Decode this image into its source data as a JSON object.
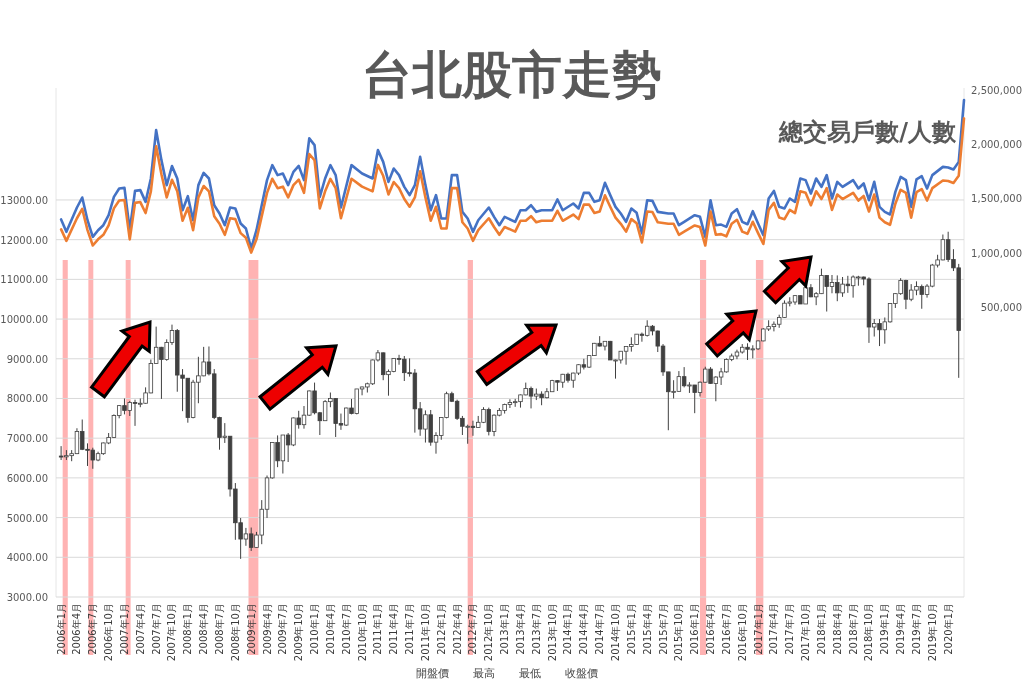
{
  "chart_data": {
    "type": "candlestick",
    "title": "台北股市走勢",
    "annotations": [
      "總交易戶數/人數",
      "開盤價",
      "最高",
      "最低",
      "收盤價"
    ],
    "color": "#404040",
    "grid": "y",
    "xlim": [
      "2005-12-02",
      "2020-04-01"
    ],
    "ylim": [
      3000,
      15820
    ],
    "yticks": [
      {
        "value": 3000,
        "label": "3000.00"
      },
      {
        "value": 4000,
        "label": "4000.00"
      },
      {
        "value": 5000,
        "label": "5000.00"
      },
      {
        "value": 6000,
        "label": "6000.00"
      },
      {
        "value": 7000,
        "label": "7000.00"
      },
      {
        "value": 8000,
        "label": "8000.00"
      },
      {
        "value": 9000,
        "label": "9000.00"
      },
      {
        "value": 10000,
        "label": "10000.00"
      },
      {
        "value": 11000,
        "label": "11000.00"
      },
      {
        "value": 12000,
        "label": "12000.00"
      },
      {
        "value": 13000,
        "label": "13000.00"
      }
    ],
    "y2lim": [
      -2170000,
      2515000
    ],
    "y2ticks": [
      {
        "value": 500000,
        "label": "500,000"
      },
      {
        "value": 1000000,
        "label": "1,000,000"
      },
      {
        "value": 1500000,
        "label": "1,500,000"
      },
      {
        "value": 2000000,
        "label": "2,000,000"
      },
      {
        "value": 2500000,
        "label": "2,500,000"
      }
    ],
    "xticks": [
      {
        "value": "2006-01",
        "label": "2006年1月"
      },
      {
        "value": "2006-04",
        "label": "2006年4月"
      },
      {
        "value": "2006-07",
        "label": "2006年7月"
      },
      {
        "value": "2006-10",
        "label": "2006年10月"
      },
      {
        "value": "2007-01",
        "label": "2007年1月"
      },
      {
        "value": "2007-04",
        "label": "2007年4月"
      },
      {
        "value": "2007-07",
        "label": "2007年7月"
      },
      {
        "value": "2007-10",
        "label": "2007年10月"
      },
      {
        "value": "2008-01",
        "label": "2008年1月"
      },
      {
        "value": "2008-04",
        "label": "2008年4月"
      },
      {
        "value": "2008-07",
        "label": "2008年7月"
      },
      {
        "value": "2008-10",
        "label": "2008年10月"
      },
      {
        "value": "2009-01",
        "label": "2009年1月"
      },
      {
        "value": "2009-04",
        "label": "2009年4月"
      },
      {
        "value": "2009-07",
        "label": "2009年7月"
      },
      {
        "value": "2009-10",
        "label": "2009年10月"
      },
      {
        "value": "2010-01",
        "label": "2010年1月"
      },
      {
        "value": "2010-04",
        "label": "2010年4月"
      },
      {
        "value": "2010-07",
        "label": "2010年7月"
      },
      {
        "value": "2010-10",
        "label": "2010年10月"
      },
      {
        "value": "2011-01",
        "label": "2011年1月"
      },
      {
        "value": "2011-04",
        "label": "2011年4月"
      },
      {
        "value": "2011-07",
        "label": "2011年7月"
      },
      {
        "value": "2011-10",
        "label": "2011年10月"
      },
      {
        "value": "2012-01",
        "label": "2012年1月"
      },
      {
        "value": "2012-04",
        "label": "2012年4月"
      },
      {
        "value": "2012-07",
        "label": "2012年7月"
      },
      {
        "value": "2012-10",
        "label": "2012年10月"
      },
      {
        "value": "2013-01",
        "label": "2013年1月"
      },
      {
        "value": "2013-04",
        "label": "2013年4月"
      },
      {
        "value": "2013-07",
        "label": "2013年7月"
      },
      {
        "value": "2013-10",
        "label": "2013年10月"
      },
      {
        "value": "2014-01",
        "label": "2014年1月"
      },
      {
        "value": "2014-04",
        "label": "2014年4月"
      },
      {
        "value": "2014-07",
        "label": "2014年7月"
      },
      {
        "value": "2014-10",
        "label": "2014年10月"
      },
      {
        "value": "2015-01",
        "label": "2015年1月"
      },
      {
        "value": "2015-04",
        "label": "2015年4月"
      },
      {
        "value": "2015-07",
        "label": "2015年7月"
      },
      {
        "value": "2015-10",
        "label": "2015年10月"
      },
      {
        "value": "2016-01",
        "label": "2016年1月"
      },
      {
        "value": "2016-04",
        "label": "2016年4月"
      },
      {
        "value": "2016-07",
        "label": "2016年7月"
      },
      {
        "value": "2016-10",
        "label": "2016年10月"
      },
      {
        "value": "2017-01",
        "label": "2017年1月"
      },
      {
        "value": "2017-04",
        "label": "2017年4月"
      },
      {
        "value": "2017-07",
        "label": "2017年7月"
      },
      {
        "value": "2017-10",
        "label": "2017年10月"
      },
      {
        "value": "2018-01",
        "label": "2018年1月"
      },
      {
        "value": "2018-04",
        "label": "2018年4月"
      },
      {
        "value": "2018-07",
        "label": "2018年7月"
      },
      {
        "value": "2018-10",
        "label": "2018年10月"
      },
      {
        "value": "2019-01",
        "label": "2019年1月"
      },
      {
        "value": "2019-04",
        "label": "2019年4月"
      },
      {
        "value": "2019-07",
        "label": "2019年7月"
      },
      {
        "value": "2019-10",
        "label": "2019年10月"
      },
      {
        "value": "2020-01",
        "label": "2020年1月"
      }
    ],
    "bands": [
      {
        "axis": "x",
        "from": "2006-01-10",
        "to": "2006-02-09",
        "color": "#ff8080"
      },
      {
        "axis": "x",
        "from": "2006-06-06",
        "to": "2006-07-04",
        "color": "#ff8080"
      },
      {
        "axis": "x",
        "from": "2007-01-08",
        "to": "2007-02-06",
        "color": "#ff8080"
      },
      {
        "axis": "x",
        "from": "2008-12-16",
        "to": "2009-02-12",
        "color": "#ff8080"
      },
      {
        "axis": "x",
        "from": "2012-06-01",
        "to": "2012-07-01",
        "color": "#ff8080"
      },
      {
        "axis": "x",
        "from": "2016-02-01",
        "to": "2016-03-06",
        "color": "#ff8080"
      },
      {
        "axis": "x",
        "from": "2016-12-19",
        "to": "2017-02-01",
        "color": "#ff8080"
      }
    ],
    "x": [
      "2006-01",
      "2006-02",
      "2006-03",
      "2006-04",
      "2006-05",
      "2006-06",
      "2006-07",
      "2006-08",
      "2006-09",
      "2006-10",
      "2006-11",
      "2006-12",
      "2007-01",
      "2007-02",
      "2007-03",
      "2007-04",
      "2007-05",
      "2007-06",
      "2007-07",
      "2007-08",
      "2007-09",
      "2007-10",
      "2007-11",
      "2007-12",
      "2008-01",
      "2008-02",
      "2008-03",
      "2008-04",
      "2008-05",
      "2008-06",
      "2008-07",
      "2008-08",
      "2008-09",
      "2008-10",
      "2008-11",
      "2008-12",
      "2009-01",
      "2009-02",
      "2009-03",
      "2009-04",
      "2009-05",
      "2009-06",
      "2009-07",
      "2009-08",
      "2009-09",
      "2009-10",
      "2009-11",
      "2009-12",
      "2010-01",
      "2010-02",
      "2010-03",
      "2010-04",
      "2010-05",
      "2010-06",
      "2010-07",
      "2010-08",
      "2010-09",
      "2010-10",
      "2010-11",
      "2010-12",
      "2011-01",
      "2011-02",
      "2011-03",
      "2011-04",
      "2011-05",
      "2011-06",
      "2011-07",
      "2011-08",
      "2011-09",
      "2011-10",
      "2011-11",
      "2011-12",
      "2012-01",
      "2012-02",
      "2012-03",
      "2012-04",
      "2012-05",
      "2012-06",
      "2012-07",
      "2012-08",
      "2012-09",
      "2012-10",
      "2012-11",
      "2012-12",
      "2013-01",
      "2013-02",
      "2013-03",
      "2013-04",
      "2013-05",
      "2013-06",
      "2013-07",
      "2013-08",
      "2013-09",
      "2013-10",
      "2013-11",
      "2013-12",
      "2014-01",
      "2014-02",
      "2014-03",
      "2014-04",
      "2014-05",
      "2014-06",
      "2014-07",
      "2014-08",
      "2014-09",
      "2014-10",
      "2014-11",
      "2014-12",
      "2015-01",
      "2015-02",
      "2015-03",
      "2015-04",
      "2015-05",
      "2015-06",
      "2015-07",
      "2015-08",
      "2015-09",
      "2015-10",
      "2015-11",
      "2015-12",
      "2016-01",
      "2016-02",
      "2016-03",
      "2016-04",
      "2016-05",
      "2016-06",
      "2016-07",
      "2016-08",
      "2016-09",
      "2016-10",
      "2016-11",
      "2016-12",
      "2017-01",
      "2017-02",
      "2017-03",
      "2017-04",
      "2017-05",
      "2017-06",
      "2017-07",
      "2017-08",
      "2017-09",
      "2017-10",
      "2017-11",
      "2017-12",
      "2018-01",
      "2018-02",
      "2018-03",
      "2018-04",
      "2018-05",
      "2018-06",
      "2018-07",
      "2018-08",
      "2018-09",
      "2018-10",
      "2018-11",
      "2018-12",
      "2019-01",
      "2019-02",
      "2019-03",
      "2019-04",
      "2019-05",
      "2019-06",
      "2019-07",
      "2019-08",
      "2019-09",
      "2019-10",
      "2019-11",
      "2019-12",
      "2020-01",
      "2020-02",
      "2020-03"
    ],
    "ohlc": [
      [
        6550,
        6800,
        6450,
        6530
      ],
      [
        6530,
        6700,
        6450,
        6560
      ],
      [
        6560,
        6700,
        6420,
        6610
      ],
      [
        6610,
        7250,
        6600,
        7170
      ],
      [
        7170,
        7470,
        6700,
        6720
      ],
      [
        6720,
        6870,
        6300,
        6700
      ],
      [
        6700,
        6760,
        6230,
        6450
      ],
      [
        6450,
        6660,
        6420,
        6610
      ],
      [
        6610,
        6890,
        6580,
        6880
      ],
      [
        6880,
        7130,
        6850,
        7020
      ],
      [
        7020,
        7600,
        7010,
        7570
      ],
      [
        7570,
        7830,
        7500,
        7820
      ],
      [
        7820,
        8000,
        7600,
        7700
      ],
      [
        7700,
        7940,
        7560,
        7900
      ],
      [
        7900,
        7970,
        7310,
        7880
      ],
      [
        7880,
        8000,
        7780,
        7880
      ],
      [
        7880,
        8280,
        7870,
        8140
      ],
      [
        8140,
        8980,
        8130,
        8880
      ],
      [
        8880,
        9810,
        8880,
        9290
      ],
      [
        9290,
        9300,
        7990,
        8980
      ],
      [
        8980,
        9490,
        8950,
        9410
      ],
      [
        9410,
        9860,
        9350,
        9710
      ],
      [
        9710,
        9750,
        8170,
        8590
      ],
      [
        8590,
        8740,
        7680,
        8510
      ],
      [
        8510,
        8510,
        7390,
        7520
      ],
      [
        7520,
        8470,
        7500,
        8410
      ],
      [
        8410,
        9050,
        7880,
        8570
      ],
      [
        8570,
        9300,
        8560,
        8920
      ],
      [
        8920,
        9310,
        8580,
        8620
      ],
      [
        8620,
        8740,
        7480,
        7520
      ],
      [
        7520,
        7540,
        6710,
        7020
      ],
      [
        7020,
        7380,
        6880,
        7050
      ],
      [
        7050,
        7050,
        5530,
        5720
      ],
      [
        5720,
        5870,
        4440,
        4870
      ],
      [
        4870,
        4990,
        3960,
        4460
      ],
      [
        4460,
        4740,
        4290,
        4590
      ],
      [
        4590,
        4750,
        4160,
        4250
      ],
      [
        4250,
        4640,
        4240,
        4560
      ],
      [
        4560,
        5440,
        4330,
        5210
      ],
      [
        5210,
        6060,
        4990,
        6000
      ],
      [
        6000,
        6890,
        5980,
        6890
      ],
      [
        6890,
        7070,
        6270,
        6430
      ],
      [
        6430,
        7080,
        6110,
        7080
      ],
      [
        7080,
        7130,
        6400,
        6830
      ],
      [
        6830,
        7520,
        6800,
        7510
      ],
      [
        7510,
        7690,
        7240,
        7340
      ],
      [
        7340,
        7810,
        7240,
        7580
      ],
      [
        7580,
        8200,
        7560,
        8190
      ],
      [
        8190,
        8400,
        7600,
        7640
      ],
      [
        7640,
        7660,
        7080,
        7440
      ],
      [
        7440,
        7960,
        7440,
        7920
      ],
      [
        7920,
        8150,
        7780,
        8000
      ],
      [
        8000,
        8010,
        7030,
        7370
      ],
      [
        7370,
        7620,
        7210,
        7330
      ],
      [
        7330,
        7770,
        7310,
        7760
      ],
      [
        7760,
        7990,
        7600,
        7620
      ],
      [
        7620,
        8240,
        7600,
        8240
      ],
      [
        8240,
        8300,
        8080,
        8290
      ],
      [
        8290,
        8400,
        8150,
        8370
      ],
      [
        8370,
        8980,
        8340,
        8970
      ],
      [
        8970,
        9220,
        8930,
        9150
      ],
      [
        9150,
        9160,
        8460,
        8600
      ],
      [
        8600,
        8730,
        8070,
        8680
      ],
      [
        8680,
        9010,
        8660,
        9010
      ],
      [
        9010,
        9100,
        8850,
        8990
      ],
      [
        8990,
        9070,
        8440,
        8650
      ],
      [
        8650,
        9010,
        8550,
        8640
      ],
      [
        8640,
        8740,
        7140,
        7740
      ],
      [
        7740,
        7910,
        7060,
        7230
      ],
      [
        7230,
        7700,
        6890,
        7590
      ],
      [
        7590,
        7710,
        6810,
        6900
      ],
      [
        6900,
        7150,
        6610,
        7070
      ],
      [
        7070,
        7520,
        6960,
        7520
      ],
      [
        7520,
        8170,
        7500,
        8120
      ],
      [
        8120,
        8170,
        7910,
        7930
      ],
      [
        7930,
        7970,
        7460,
        7500
      ],
      [
        7500,
        7560,
        7080,
        7300
      ],
      [
        7300,
        7340,
        6860,
        7300
      ],
      [
        7300,
        7440,
        7060,
        7270
      ],
      [
        7270,
        7560,
        7270,
        7400
      ],
      [
        7400,
        7780,
        7380,
        7720
      ],
      [
        7720,
        7770,
        7070,
        7170
      ],
      [
        7170,
        7600,
        7050,
        7580
      ],
      [
        7580,
        7760,
        7550,
        7700
      ],
      [
        7700,
        7870,
        7620,
        7850
      ],
      [
        7850,
        7980,
        7760,
        7900
      ],
      [
        7900,
        7990,
        7790,
        7920
      ],
      [
        7920,
        8100,
        7770,
        8090
      ],
      [
        8090,
        8400,
        8080,
        8250
      ],
      [
        8250,
        8300,
        7750,
        8060
      ],
      [
        8060,
        8250,
        7960,
        8110
      ],
      [
        8110,
        8180,
        7830,
        8020
      ],
      [
        8020,
        8260,
        8000,
        8170
      ],
      [
        8170,
        8470,
        8170,
        8450
      ],
      [
        8450,
        8460,
        8190,
        8410
      ],
      [
        8410,
        8620,
        8270,
        8610
      ],
      [
        8610,
        8650,
        8400,
        8460
      ],
      [
        8460,
        8650,
        8270,
        8640
      ],
      [
        8640,
        8860,
        8590,
        8850
      ],
      [
        8850,
        9000,
        8730,
        8790
      ],
      [
        8790,
        9080,
        8770,
        9080
      ],
      [
        9080,
        9400,
        9070,
        9390
      ],
      [
        9390,
        9570,
        9310,
        9320
      ],
      [
        9320,
        9440,
        9210,
        9440
      ],
      [
        9440,
        9450,
        8970,
        8970
      ],
      [
        8970,
        8980,
        8500,
        8970
      ],
      [
        8970,
        9190,
        8880,
        9190
      ],
      [
        9190,
        9310,
        8850,
        9310
      ],
      [
        9310,
        9540,
        9180,
        9360
      ],
      [
        9360,
        9620,
        9350,
        9620
      ],
      [
        9620,
        9660,
        9430,
        9590
      ],
      [
        9590,
        9970,
        9560,
        9820
      ],
      [
        9820,
        9850,
        9590,
        9700
      ],
      [
        9700,
        9710,
        9170,
        9320
      ],
      [
        9320,
        9370,
        8570,
        8670
      ],
      [
        8670,
        8670,
        7200,
        8170
      ],
      [
        8170,
        8460,
        8000,
        8180
      ],
      [
        8180,
        8690,
        8170,
        8550
      ],
      [
        8550,
        8790,
        8280,
        8320
      ],
      [
        8320,
        8410,
        8140,
        8340
      ],
      [
        8340,
        8340,
        7630,
        8150
      ],
      [
        8150,
        8430,
        8050,
        8410
      ],
      [
        8410,
        8800,
        8400,
        8740
      ],
      [
        8740,
        8790,
        8370,
        8380
      ],
      [
        8380,
        8560,
        7930,
        8540
      ],
      [
        8540,
        8770,
        8340,
        8670
      ],
      [
        8670,
        9010,
        8650,
        8980
      ],
      [
        8980,
        9130,
        8940,
        9070
      ],
      [
        9070,
        9230,
        8990,
        9170
      ],
      [
        9170,
        9370,
        9130,
        9290
      ],
      [
        9290,
        9390,
        8970,
        9240
      ],
      [
        9240,
        9340,
        9010,
        9250
      ],
      [
        9250,
        9460,
        9220,
        9450
      ],
      [
        9450,
        9770,
        9440,
        9750
      ],
      [
        9750,
        9970,
        9700,
        9810
      ],
      [
        9810,
        9940,
        9690,
        9870
      ],
      [
        9870,
        10110,
        9780,
        10040
      ],
      [
        10040,
        10470,
        10030,
        10400
      ],
      [
        10400,
        10550,
        10320,
        10430
      ],
      [
        10430,
        10600,
        10360,
        10590
      ],
      [
        10590,
        10600,
        10380,
        10380
      ],
      [
        10380,
        10820,
        10380,
        10790
      ],
      [
        10790,
        10880,
        10550,
        10560
      ],
      [
        10560,
        10680,
        10350,
        10640
      ],
      [
        10640,
        11270,
        10630,
        11100
      ],
      [
        11100,
        11110,
        10190,
        10820
      ],
      [
        10820,
        11110,
        10650,
        10920
      ],
      [
        10920,
        11100,
        10450,
        10660
      ],
      [
        10660,
        11060,
        10560,
        10880
      ],
      [
        10880,
        11090,
        10660,
        10840
      ],
      [
        10840,
        11100,
        10540,
        11060
      ],
      [
        11060,
        11090,
        10840,
        11060
      ],
      [
        11060,
        11070,
        10850,
        11010
      ],
      [
        11010,
        11050,
        9400,
        9800
      ],
      [
        9800,
        10000,
        9560,
        9890
      ],
      [
        9890,
        10000,
        9320,
        9730
      ],
      [
        9730,
        10040,
        9380,
        9930
      ],
      [
        9930,
        10400,
        9910,
        10390
      ],
      [
        10390,
        10650,
        10280,
        10640
      ],
      [
        10640,
        11030,
        10610,
        10970
      ],
      [
        10970,
        10990,
        10250,
        10500
      ],
      [
        10500,
        10880,
        10450,
        10730
      ],
      [
        10730,
        10950,
        10600,
        10820
      ],
      [
        10820,
        10870,
        10260,
        10620
      ],
      [
        10620,
        10880,
        10540,
        10830
      ],
      [
        10830,
        11390,
        10800,
        11360
      ],
      [
        11360,
        11620,
        11300,
        11490
      ],
      [
        11490,
        12130,
        11480,
        12000
      ],
      [
        12000,
        12200,
        11440,
        11500
      ],
      [
        11500,
        11760,
        11210,
        11290
      ],
      [
        11290,
        11390,
        8520,
        9710
      ]
    ],
    "series": [
      {
        "type": "line",
        "axis": "y2",
        "color": "#4472c4",
        "x": [
          "2006-01",
          "2006-02",
          "2006-04",
          "2006-05",
          "2006-06",
          "2006-07",
          "2006-08",
          "2006-09",
          "2006-10",
          "2006-11",
          "2006-12",
          "2007-01",
          "2007-02",
          "2007-03",
          "2007-04",
          "2007-05",
          "2007-06",
          "2007-07",
          "2007-08",
          "2007-09",
          "2007-10",
          "2007-11",
          "2007-12",
          "2008-01",
          "2008-02",
          "2008-03",
          "2008-04",
          "2008-05",
          "2008-06",
          "2008-07",
          "2008-08",
          "2008-09",
          "2008-10",
          "2008-11",
          "2008-12",
          "2009-01",
          "2009-02",
          "2009-04",
          "2009-05",
          "2009-06",
          "2009-07",
          "2009-08",
          "2009-09",
          "2009-10",
          "2009-11",
          "2009-12",
          "2010-01",
          "2010-02",
          "2010-03",
          "2010-04",
          "2010-05",
          "2010-06",
          "2010-08",
          "2010-10",
          "2010-12",
          "2011-01",
          "2011-02",
          "2011-03",
          "2011-04",
          "2011-05",
          "2011-06",
          "2011-07",
          "2011-08",
          "2011-09",
          "2011-10",
          "2011-11",
          "2011-12",
          "2012-01",
          "2012-02",
          "2012-03",
          "2012-04",
          "2012-05",
          "2012-06",
          "2012-07",
          "2012-08",
          "2012-10",
          "2012-11",
          "2012-12",
          "2013-01",
          "2013-03",
          "2013-04",
          "2013-05",
          "2013-06",
          "2013-07",
          "2013-08",
          "2013-10",
          "2013-11",
          "2013-12",
          "2014-02",
          "2014-03",
          "2014-04",
          "2014-05",
          "2014-06",
          "2014-07",
          "2014-08",
          "2014-09",
          "2014-10",
          "2014-11",
          "2014-12",
          "2015-01",
          "2015-02",
          "2015-03",
          "2015-04",
          "2015-05",
          "2015-06",
          "2015-08",
          "2015-09",
          "2015-10",
          "2015-11",
          "2016-01",
          "2016-02",
          "2016-03",
          "2016-04",
          "2016-05",
          "2016-06",
          "2016-07",
          "2016-08",
          "2016-09",
          "2016-10",
          "2016-11",
          "2016-12",
          "2017-01",
          "2017-02",
          "2017-03",
          "2017-04",
          "2017-05",
          "2017-06",
          "2017-07",
          "2017-08",
          "2017-09",
          "2017-10",
          "2017-11",
          "2017-12",
          "2018-01",
          "2018-02",
          "2018-03",
          "2018-04",
          "2018-05",
          "2018-07",
          "2018-08",
          "2018-09",
          "2018-10",
          "2018-11",
          "2018-12",
          "2019-01",
          "2019-02",
          "2019-03",
          "2019-04",
          "2019-05",
          "2019-06",
          "2019-07",
          "2019-08",
          "2019-09",
          "2019-10",
          "2019-12",
          "2020-01",
          "2020-02",
          "2020-03",
          "2020-04"
        ],
        "values": [
          1305000,
          1191000,
          1415000,
          1507000,
          1298000,
          1145000,
          1206000,
          1252000,
          1344000,
          1513000,
          1590000,
          1596000,
          1206000,
          1568000,
          1575000,
          1467000,
          1682000,
          2127000,
          1851000,
          1621000,
          1796000,
          1682000,
          1390000,
          1519000,
          1298000,
          1621000,
          1734000,
          1682000,
          1436000,
          1360000,
          1252000,
          1415000,
          1406000,
          1268000,
          1222000,
          1038000,
          1206000,
          1667000,
          1805000,
          1713000,
          1728000,
          1621000,
          1743000,
          1798000,
          1667000,
          2051000,
          1989000,
          1513000,
          1682000,
          1805000,
          1713000,
          1415000,
          1805000,
          1728000,
          1682000,
          1943000,
          1835000,
          1651000,
          1774000,
          1713000,
          1605000,
          1529000,
          1621000,
          1881000,
          1621000,
          1390000,
          1529000,
          1314000,
          1314000,
          1713000,
          1713000,
          1375000,
          1314000,
          1191000,
          1298000,
          1415000,
          1329000,
          1252000,
          1329000,
          1283000,
          1390000,
          1390000,
          1436000,
          1375000,
          1390000,
          1390000,
          1489000,
          1390000,
          1452000,
          1406000,
          1550000,
          1550000,
          1467000,
          1482000,
          1642000,
          1529000,
          1421000,
          1360000,
          1283000,
          1406000,
          1366000,
          1176000,
          1482000,
          1476000,
          1375000,
          1360000,
          1360000,
          1252000,
          1283000,
          1344000,
          1329000,
          1145000,
          1482000,
          1252000,
          1258000,
          1237000,
          1360000,
          1400000,
          1283000,
          1261000,
          1381000,
          1268000,
          1160000,
          1498000,
          1568000,
          1421000,
          1406000,
          1498000,
          1467000,
          1682000,
          1667000,
          1544000,
          1682000,
          1605000,
          1713000,
          1498000,
          1651000,
          1605000,
          1667000,
          1590000,
          1636000,
          1482000,
          1651000,
          1421000,
          1375000,
          1351000,
          1559000,
          1697000,
          1667000,
          1421000,
          1673000,
          1703000,
          1590000,
          1713000,
          1789000,
          1784000,
          1765000,
          1835000,
          2403000
        ]
      },
      {
        "type": "line",
        "axis": "y2",
        "color": "#ed7d31",
        "x": [
          "2006-01",
          "2006-02",
          "2006-04",
          "2006-05",
          "2006-06",
          "2006-07",
          "2006-08",
          "2006-09",
          "2006-10",
          "2006-11",
          "2006-12",
          "2007-01",
          "2007-02",
          "2007-03",
          "2007-04",
          "2007-05",
          "2007-06",
          "2007-07",
          "2007-08",
          "2007-09",
          "2007-10",
          "2007-11",
          "2007-12",
          "2008-01",
          "2008-02",
          "2008-03",
          "2008-04",
          "2008-05",
          "2008-06",
          "2008-07",
          "2008-08",
          "2008-09",
          "2008-10",
          "2008-11",
          "2008-12",
          "2009-01",
          "2009-02",
          "2009-04",
          "2009-05",
          "2009-06",
          "2009-07",
          "2009-08",
          "2009-09",
          "2009-10",
          "2009-11",
          "2009-12",
          "2010-01",
          "2010-02",
          "2010-03",
          "2010-04",
          "2010-05",
          "2010-06",
          "2010-08",
          "2010-10",
          "2010-12",
          "2011-01",
          "2011-02",
          "2011-03",
          "2011-04",
          "2011-05",
          "2011-06",
          "2011-07",
          "2011-08",
          "2011-09",
          "2011-10",
          "2011-11",
          "2011-12",
          "2012-01",
          "2012-02",
          "2012-03",
          "2012-04",
          "2012-05",
          "2012-06",
          "2012-07",
          "2012-08",
          "2012-10",
          "2012-11",
          "2012-12",
          "2013-01",
          "2013-03",
          "2013-04",
          "2013-05",
          "2013-06",
          "2013-07",
          "2013-08",
          "2013-10",
          "2013-11",
          "2013-12",
          "2014-02",
          "2014-03",
          "2014-04",
          "2014-05",
          "2014-06",
          "2014-07",
          "2014-08",
          "2014-09",
          "2014-10",
          "2014-11",
          "2014-12",
          "2015-01",
          "2015-02",
          "2015-03",
          "2015-04",
          "2015-05",
          "2015-06",
          "2015-08",
          "2015-09",
          "2015-10",
          "2015-11",
          "2016-01",
          "2016-02",
          "2016-03",
          "2016-04",
          "2016-05",
          "2016-06",
          "2016-07",
          "2016-08",
          "2016-09",
          "2016-10",
          "2016-11",
          "2016-12",
          "2017-01",
          "2017-02",
          "2017-03",
          "2017-04",
          "2017-05",
          "2017-06",
          "2017-07",
          "2017-08",
          "2017-09",
          "2017-10",
          "2017-11",
          "2017-12",
          "2018-01",
          "2018-02",
          "2018-03",
          "2018-04",
          "2018-05",
          "2018-07",
          "2018-08",
          "2018-09",
          "2018-10",
          "2018-11",
          "2018-12",
          "2019-01",
          "2019-02",
          "2019-03",
          "2019-04",
          "2019-05",
          "2019-06",
          "2019-07",
          "2019-08",
          "2019-09",
          "2019-10",
          "2019-12",
          "2020-01",
          "2020-02",
          "2020-03",
          "2020-04"
        ],
        "values": [
          1214000,
          1108000,
          1316000,
          1402000,
          1207000,
          1065000,
          1122000,
          1164000,
          1250000,
          1407000,
          1479000,
          1484000,
          1122000,
          1458000,
          1465000,
          1364000,
          1564000,
          1978000,
          1721000,
          1508000,
          1670000,
          1564000,
          1293000,
          1413000,
          1207000,
          1508000,
          1613000,
          1564000,
          1335000,
          1265000,
          1164000,
          1316000,
          1308000,
          1179000,
          1136000,
          1000000,
          1122000,
          1550000,
          1679000,
          1593000,
          1607000,
          1508000,
          1621000,
          1672000,
          1550000,
          1907000,
          1850000,
          1407000,
          1564000,
          1679000,
          1593000,
          1316000,
          1679000,
          1607000,
          1564000,
          1807000,
          1707000,
          1535000,
          1650000,
          1593000,
          1493000,
          1422000,
          1508000,
          1749000,
          1508000,
          1293000,
          1422000,
          1222000,
          1222000,
          1593000,
          1593000,
          1279000,
          1222000,
          1108000,
          1207000,
          1316000,
          1236000,
          1164000,
          1236000,
          1193000,
          1293000,
          1293000,
          1335000,
          1279000,
          1293000,
          1293000,
          1385000,
          1293000,
          1350000,
          1308000,
          1442000,
          1442000,
          1364000,
          1378000,
          1527000,
          1422000,
          1322000,
          1265000,
          1193000,
          1308000,
          1270000,
          1094000,
          1378000,
          1373000,
          1279000,
          1265000,
          1265000,
          1164000,
          1193000,
          1250000,
          1236000,
          1065000,
          1378000,
          1164000,
          1170000,
          1150000,
          1265000,
          1302000,
          1193000,
          1173000,
          1284000,
          1179000,
          1079000,
          1393000,
          1458000,
          1322000,
          1308000,
          1393000,
          1364000,
          1564000,
          1550000,
          1436000,
          1564000,
          1493000,
          1593000,
          1393000,
          1535000,
          1493000,
          1550000,
          1479000,
          1521000,
          1378000,
          1535000,
          1322000,
          1279000,
          1256000,
          1450000,
          1578000,
          1550000,
          1322000,
          1556000,
          1584000,
          1479000,
          1593000,
          1664000,
          1659000,
          1641000,
          1707000,
          2235000
        ]
      }
    ]
  }
}
